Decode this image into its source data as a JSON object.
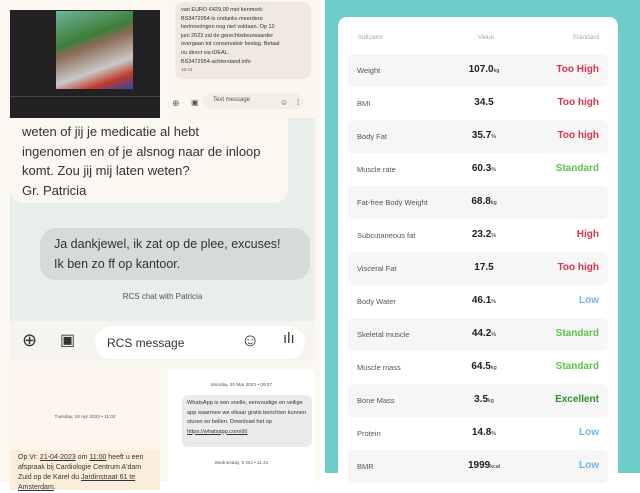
{
  "sms_top": {
    "lines": [
      "van EURO €429,00 met kenmerk:",
      "BS3472954 is ondanks meerdere",
      "herinneringen nog niet voldaan. Op 12",
      "juni 2023 zal de gerechtsdeurwaarder",
      "overgaan tot conservatoir beslag. Betaal",
      "nu direct via iDEAL."
    ],
    "link": "BS3472954-achterstand.info",
    "time": "19:43",
    "placeholder": "Text message"
  },
  "chat": {
    "incoming_lines": [
      "weten of jij je medicatie al hebt",
      "ingenomen en of je alsnog naar de inloop",
      "komt. Zou jij mij laten weten?",
      "Gr. Patricia"
    ],
    "outgoing_lines": [
      "Ja dankjewel, ik zat op de plee, excuses!",
      "Ik ben zo ff op kantoor."
    ],
    "label": "RCS chat with Patricia",
    "placeholder": "RCS message"
  },
  "lower_left": {
    "timestamp": "Tuesday, 18 Apr 2023 • 11:02",
    "p1": "Op Vr: ",
    "date": "21-04-2023",
    "p2": " om ",
    "time": "11:00",
    "p3": " heeft u een afspraak bij Cardiologie Centrum A'dam Zuid op de Karel du ",
    "addr": "Jardinstraat 61 te Amsterdam",
    "p4": "."
  },
  "lower_right": {
    "timestamp": "Monday, 20 Mar 2023 • 09:27",
    "text": "WhatsApp is een snelle, eenvoudige en veilige app waarmee we elkaar gratis berichten kunnen sturen en bellen. Download het op",
    "link": "https://whatsapp.com/dl/",
    "timestamp2": "Wednesday, 9 Oct • 11:41"
  },
  "health": {
    "headers": {
      "indicator": "Indicator",
      "value": "Value",
      "standard": "Standard"
    },
    "colors": {
      "high": "#d8344c",
      "standard": "#5cc24a",
      "excellent": "#2e8b2e",
      "low": "#6cb6e6"
    },
    "rows": [
      {
        "indicator": "Weight",
        "value": "107.0",
        "unit": "kg",
        "standard": "Too High",
        "level": "high"
      },
      {
        "indicator": "BMI",
        "value": "34.5",
        "unit": "",
        "standard": "Too high",
        "level": "high"
      },
      {
        "indicator": "Body Fat",
        "value": "35.7",
        "unit": "%",
        "standard": "Too high",
        "level": "high"
      },
      {
        "indicator": "Muscle rate",
        "value": "60.3",
        "unit": "%",
        "standard": "Standard",
        "level": "standard"
      },
      {
        "indicator": "Fat-free Body Weight",
        "value": "68.8",
        "unit": "kg",
        "standard": "",
        "level": "none"
      },
      {
        "indicator": "Subcutaneous fat",
        "value": "23.2",
        "unit": "%",
        "standard": "High",
        "level": "high"
      },
      {
        "indicator": "Visceral Fat",
        "value": "17.5",
        "unit": "",
        "standard": "Too high",
        "level": "high"
      },
      {
        "indicator": "Body Water",
        "value": "46.1",
        "unit": "%",
        "standard": "Low",
        "level": "low"
      },
      {
        "indicator": "Skeletal muscle",
        "value": "44.2",
        "unit": "%",
        "standard": "Standard",
        "level": "standard"
      },
      {
        "indicator": "Muscle mass",
        "value": "64.5",
        "unit": "kg",
        "standard": "Standard",
        "level": "standard"
      },
      {
        "indicator": "Bone Mass",
        "value": "3.5",
        "unit": "kg",
        "standard": "Excellent",
        "level": "excellent"
      },
      {
        "indicator": "Protein",
        "value": "14.8",
        "unit": "%",
        "standard": "Low",
        "level": "low"
      },
      {
        "indicator": "BMR",
        "value": "1999",
        "unit": "kcal",
        "standard": "Low",
        "level": "low"
      }
    ]
  }
}
